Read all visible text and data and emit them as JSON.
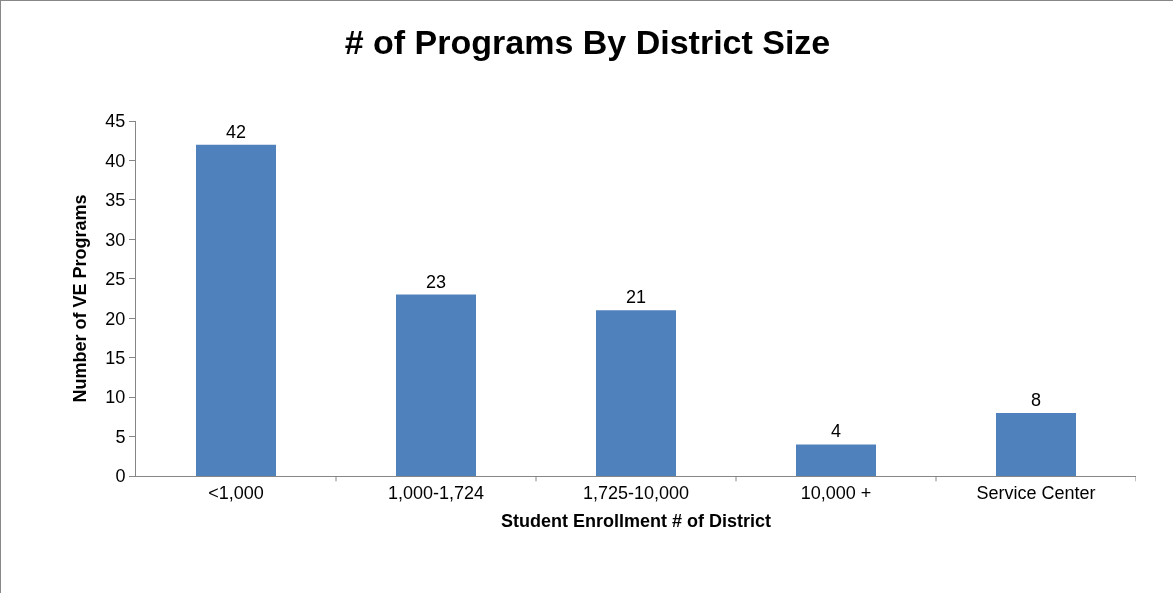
{
  "chart_data": {
    "type": "bar",
    "title": "# of Programs By District Size",
    "xlabel": "Student Enrollment # of District",
    "ylabel": "Number of VE Programs",
    "categories": [
      "<1,000",
      "1,000-1,724",
      "1,725-10,000",
      "10,000 +",
      "Service Center"
    ],
    "values": [
      42,
      23,
      21,
      4,
      8
    ],
    "color": "#4f81bd",
    "data_labels": true,
    "grid": false,
    "legend": false,
    "ylim": [
      0,
      45
    ],
    "yticks": [
      0,
      5,
      10,
      15,
      20,
      25,
      30,
      35,
      40,
      45
    ]
  }
}
